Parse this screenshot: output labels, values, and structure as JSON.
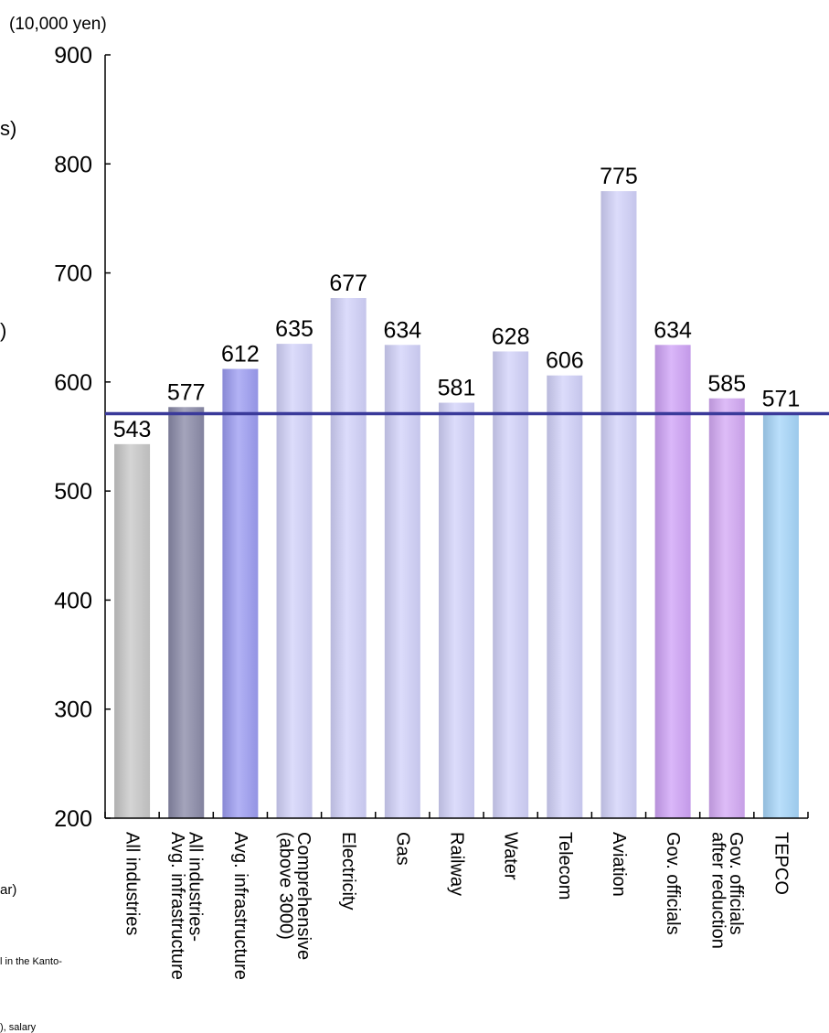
{
  "chart_data": {
    "type": "bar",
    "unit_label": "(10,000 yen)",
    "categories": [
      [
        "All industries"
      ],
      [
        "All industries-",
        "Avg. infrastructure"
      ],
      [
        "Avg. infrastructure"
      ],
      [
        "Comprehensive",
        "(above 3000)"
      ],
      [
        "Electricity"
      ],
      [
        "Gas"
      ],
      [
        "Railway"
      ],
      [
        "Water"
      ],
      [
        "Telecom"
      ],
      [
        "Aviation"
      ],
      [
        "Gov. officials"
      ],
      [
        "Gov. officials",
        "after reduction"
      ],
      [
        "TEPCO"
      ]
    ],
    "values": [
      543,
      577,
      612,
      635,
      677,
      634,
      581,
      628,
      606,
      775,
      634,
      585,
      571
    ],
    "data_labels": [
      "543",
      "577",
      "612",
      "635",
      "677",
      "634",
      "581",
      "628",
      "606",
      "775",
      "634",
      "585",
      "571"
    ],
    "ylim": [
      200,
      900
    ],
    "yticks": [
      200,
      300,
      400,
      500,
      600,
      700,
      800,
      900
    ],
    "reference_line": 571,
    "bar_colors": [
      "#c8c8c8",
      "#8a8aa8",
      "#9c9cf2",
      "#d2d2fa",
      "#d2d2fa",
      "#d2d2fa",
      "#d2d2fa",
      "#d2d2fa",
      "#d2d2fa",
      "#d2d2fa",
      "#cfa3f7",
      "#d4a9f5",
      "#a6d6fa"
    ],
    "reference_line_color": "#3a3a9a",
    "grid": false,
    "legend": "none"
  },
  "cut_off_text": {
    "left_1": "s)",
    "left_2": ")",
    "left_3": "ar)",
    "left_4": "l in the Kanto-",
    "left_5": "), salary"
  }
}
